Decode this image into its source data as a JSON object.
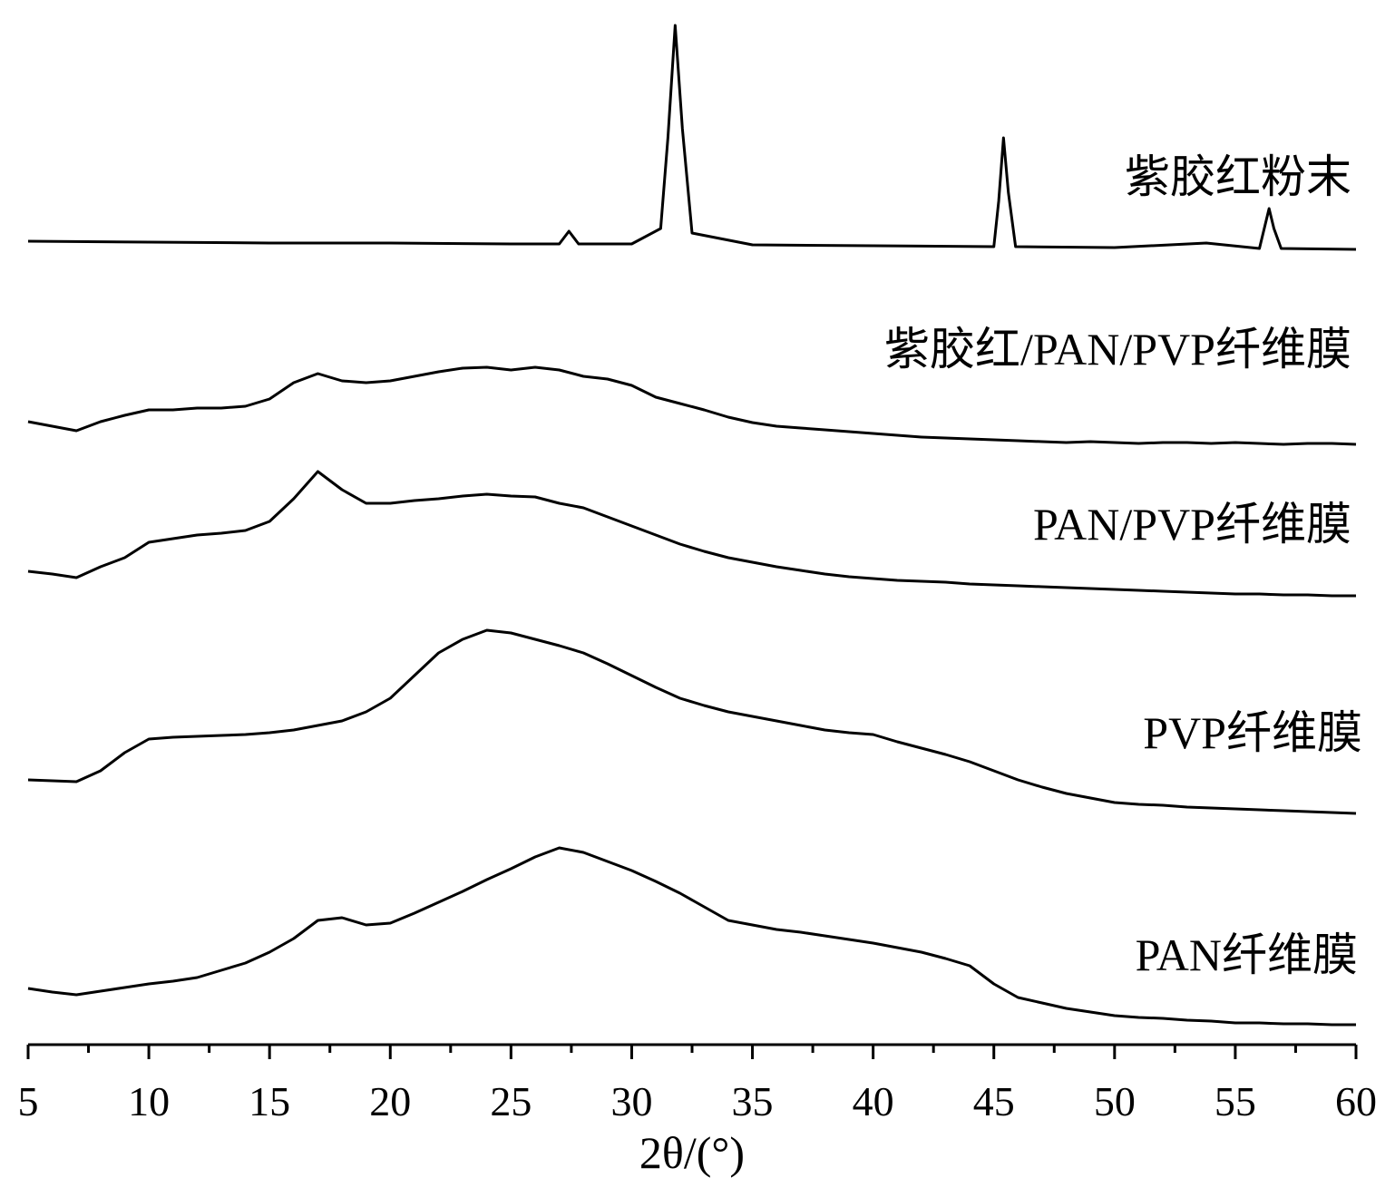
{
  "chart_data": {
    "type": "line",
    "xlabel": "2θ/(°)",
    "xlim": [
      5,
      60
    ],
    "xticks": [
      5,
      10,
      15,
      20,
      25,
      30,
      35,
      40,
      45,
      50,
      55,
      60
    ],
    "xminor_ticks": [
      7.5,
      12.5,
      17.5,
      22.5,
      27.5,
      32.5,
      37.5,
      42.5,
      47.5,
      52.5,
      57.5
    ],
    "ylim": [
      0,
      1130
    ],
    "x": [
      5,
      6,
      7,
      8,
      9,
      10,
      11,
      12,
      13,
      14,
      15,
      16,
      17,
      18,
      19,
      20,
      21,
      22,
      23,
      24,
      25,
      26,
      27,
      28,
      29,
      30,
      31,
      32,
      33,
      34,
      35,
      36,
      37,
      38,
      39,
      40,
      41,
      42,
      43,
      44,
      45,
      46,
      47,
      48,
      49,
      50,
      51,
      52,
      53,
      54,
      55,
      56,
      57,
      58,
      59,
      60
    ],
    "series": [
      {
        "name": "紫胶红粉末",
        "color": "#000000",
        "x": [
          5,
          10,
          15,
          20,
          25,
          27.0,
          27.4,
          27.8,
          30,
          31.2,
          31.5,
          31.8,
          32.1,
          32.5,
          35,
          40,
          45,
          45.2,
          45.4,
          45.6,
          45.9,
          50,
          53.8,
          56,
          56.2,
          56.4,
          56.6,
          56.9,
          60
        ],
        "values": [
          886,
          885,
          884,
          884,
          883,
          883,
          897,
          883,
          883,
          900,
          1000,
          1124,
          1010,
          895,
          882,
          881,
          880,
          930,
          1000,
          940,
          880,
          879,
          884,
          878,
          900,
          922,
          900,
          878,
          877
        ]
      },
      {
        "name": "紫胶红/PAN/PVP纤维膜",
        "color": "#000000",
        "values": [
          687,
          682,
          677,
          687,
          694,
          700,
          700,
          702,
          702,
          704,
          712,
          730,
          740,
          732,
          730,
          732,
          737,
          742,
          746,
          747,
          744,
          747,
          744,
          737,
          734,
          727,
          714,
          707,
          700,
          692,
          686,
          682,
          680,
          678,
          676,
          674,
          672,
          670,
          669,
          668,
          667,
          666,
          665,
          664,
          665,
          664,
          663,
          664,
          664,
          663,
          664,
          663,
          662,
          663,
          663,
          662
        ]
      },
      {
        "name": "PAN/PVP纤维膜",
        "color": "#000000",
        "values": [
          522,
          519,
          515,
          527,
          537,
          554,
          558,
          562,
          564,
          567,
          577,
          602,
          632,
          612,
          597,
          597,
          600,
          602,
          605,
          607,
          605,
          604,
          597,
          592,
          582,
          572,
          562,
          552,
          544,
          537,
          532,
          527,
          523,
          519,
          516,
          514,
          512,
          511,
          510,
          508,
          507,
          506,
          505,
          504,
          503,
          502,
          501,
          500,
          499,
          498,
          497,
          497,
          496,
          496,
          495,
          495
        ]
      },
      {
        "name": "PVP纤维膜",
        "color": "#000000",
        "values": [
          292,
          291,
          290,
          302,
          322,
          337,
          339,
          340,
          341,
          342,
          344,
          347,
          352,
          357,
          367,
          382,
          407,
          432,
          447,
          457,
          454,
          447,
          440,
          432,
          420,
          407,
          394,
          382,
          374,
          367,
          362,
          357,
          352,
          347,
          344,
          342,
          334,
          327,
          320,
          312,
          302,
          292,
          284,
          277,
          272,
          267,
          265,
          264,
          262,
          261,
          260,
          259,
          258,
          257,
          256,
          255
        ]
      },
      {
        "name": "PAN纤维膜",
        "color": "#000000",
        "values": [
          62,
          58,
          55,
          59,
          63,
          67,
          70,
          74,
          82,
          90,
          102,
          117,
          137,
          140,
          132,
          134,
          145,
          157,
          169,
          182,
          194,
          207,
          217,
          212,
          202,
          192,
          180,
          167,
          152,
          137,
          132,
          127,
          124,
          120,
          116,
          112,
          107,
          102,
          95,
          87,
          67,
          52,
          46,
          40,
          36,
          32,
          30,
          29,
          27,
          26,
          24,
          24,
          23,
          23,
          22,
          22
        ]
      }
    ]
  }
}
